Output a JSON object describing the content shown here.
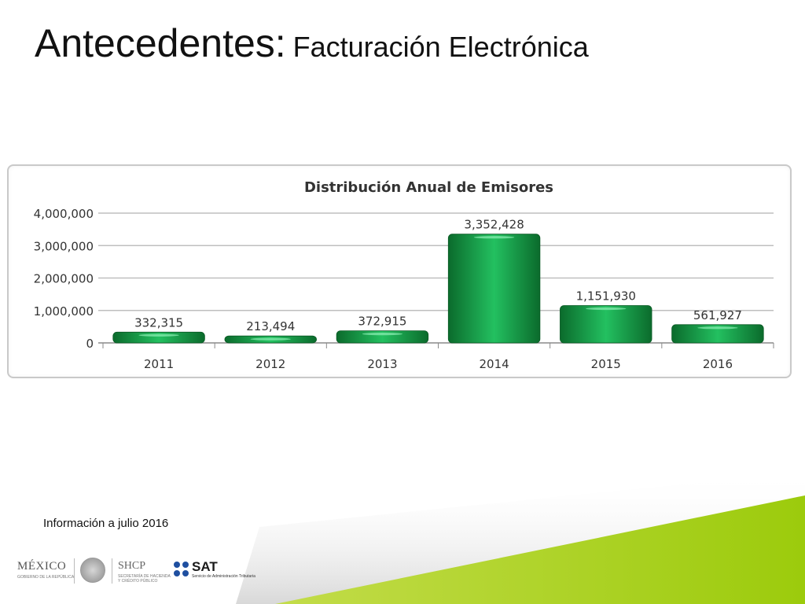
{
  "slide": {
    "title_main": "Antecedentes:",
    "title_sub": "Facturación Electrónica",
    "footnote": "Información a julio 2016"
  },
  "logos": {
    "mexico": "MÉXICO",
    "mexico_sub": "GOBIERNO DE LA REPÚBLICA",
    "shcp": "SHCP",
    "shcp_sub_1": "SECRETARÍA DE HACIENDA",
    "shcp_sub_2": "Y CRÉDITO PÚBLICO",
    "sat": "SAT",
    "sat_sub": "Servicio de Administración Tributaria"
  },
  "colors": {
    "bar_dark": "#0b6b2c",
    "bar_light": "#23c060",
    "accent_green": "#a8cf1e",
    "grid": "#bfbfbf",
    "label_text": "#333333"
  },
  "chart_data": {
    "type": "bar",
    "title": "Distribución Anual de Emisores",
    "xlabel": "",
    "ylabel": "",
    "categories": [
      "2011",
      "2012",
      "2013",
      "2014",
      "2015",
      "2016"
    ],
    "values": [
      332315,
      213494,
      372915,
      3352428,
      1151930,
      561927
    ],
    "data_labels": [
      "332,315",
      "213,494",
      "372,915",
      "3,352,428",
      "1,151,930",
      "561,927"
    ],
    "y_ticks": [
      0,
      1000000,
      2000000,
      3000000,
      4000000
    ],
    "y_tick_labels": [
      "0",
      "1,000,000",
      "2,000,000",
      "3,000,000",
      "4,000,000"
    ],
    "ylim": [
      0,
      4000000
    ],
    "grid": true,
    "legend": "none"
  }
}
